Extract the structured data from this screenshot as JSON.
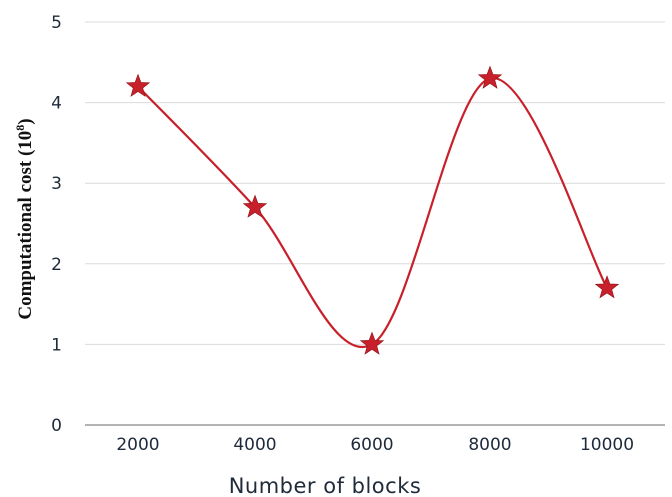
{
  "chart_data": {
    "type": "line",
    "title": "",
    "xlabel": "Number of blocks",
    "ylabel": "Computational cost (10",
    "ylabel_exponent": "8",
    "ylabel_close": ")",
    "x": [
      2000,
      4000,
      6000,
      8000,
      10000
    ],
    "x_tick_labels": [
      "2000",
      "4000",
      "6000",
      "8000",
      "10000"
    ],
    "y_ticks": [
      0,
      1,
      2,
      3,
      4,
      5
    ],
    "ylim": [
      0,
      5
    ],
    "grid": "horizontal",
    "legend": "none",
    "series": [
      {
        "values": [
          4.2,
          2.7,
          1.0,
          4.3,
          1.7
        ],
        "color": "#c8202a",
        "marker": "star",
        "smooth": true
      }
    ]
  }
}
